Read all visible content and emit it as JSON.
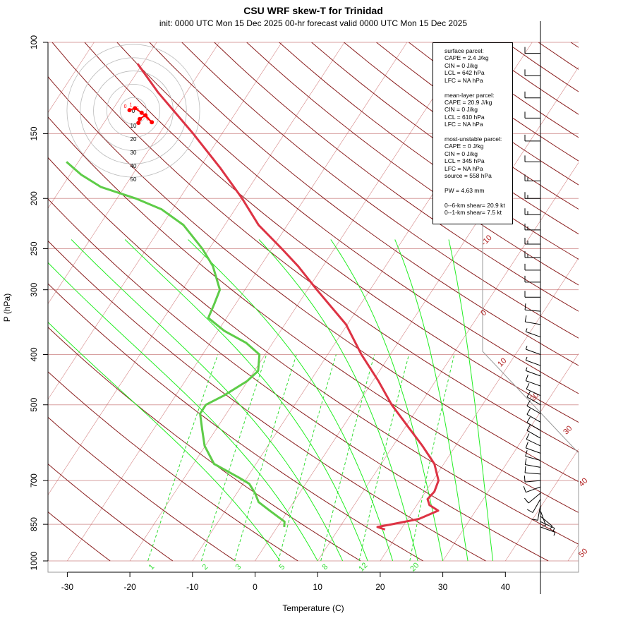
{
  "chart_data": {
    "type": "skew-t",
    "title": "CSU WRF skew-T for Trinidad",
    "subtitle": "init: 0000 UTC Mon 15 Dec 2025    00-hr forecast valid 0000 UTC Mon 15 Dec 2025",
    "xlabel": "Temperature (C)",
    "ylabel": "P (hPa)",
    "x_ticks": [
      -30,
      -20,
      -10,
      0,
      10,
      20,
      30,
      40
    ],
    "p_ticks": [
      100,
      150,
      200,
      250,
      300,
      400,
      500,
      700,
      850,
      1000
    ],
    "isotherm_labels": [
      "-10",
      "0",
      "10",
      "20",
      "30",
      "40",
      "50"
    ],
    "mixing_ratio_labels": [
      "1",
      "2",
      "3",
      "5",
      "8",
      "12",
      "20"
    ],
    "temperature_profile": [
      {
        "p": 870,
        "t": 17.5
      },
      {
        "p": 860,
        "t": 16.0
      },
      {
        "p": 850,
        "t": 18.0
      },
      {
        "p": 830,
        "t": 21.8
      },
      {
        "p": 800,
        "t": 24.0
      },
      {
        "p": 780,
        "t": 22.0
      },
      {
        "p": 760,
        "t": 21.1
      },
      {
        "p": 735,
        "t": 21.4
      },
      {
        "p": 700,
        "t": 20.9
      },
      {
        "p": 650,
        "t": 18.5
      },
      {
        "p": 600,
        "t": 14.7
      },
      {
        "p": 550,
        "t": 10.3
      },
      {
        "p": 500,
        "t": 5.5
      },
      {
        "p": 450,
        "t": 0.9
      },
      {
        "p": 400,
        "t": -4.6
      },
      {
        "p": 350,
        "t": -10.2
      },
      {
        "p": 300,
        "t": -18.5
      },
      {
        "p": 270,
        "t": -24.0
      },
      {
        "p": 250,
        "t": -28.4
      },
      {
        "p": 225,
        "t": -34.6
      },
      {
        "p": 200,
        "t": -40.0
      },
      {
        "p": 175,
        "t": -46.6
      },
      {
        "p": 150,
        "t": -54.6
      },
      {
        "p": 125,
        "t": -64.5
      },
      {
        "p": 110,
        "t": -70.8
      }
    ],
    "dewpoint_profile": [
      {
        "p": 860,
        "t": 1.1
      },
      {
        "p": 840,
        "t": 0.6
      },
      {
        "p": 800,
        "t": -2.9
      },
      {
        "p": 770,
        "t": -5.6
      },
      {
        "p": 740,
        "t": -7.1
      },
      {
        "p": 710,
        "t": -9.0
      },
      {
        "p": 690,
        "t": -11.4
      },
      {
        "p": 650,
        "t": -16.7
      },
      {
        "p": 600,
        "t": -20.1
      },
      {
        "p": 560,
        "t": -22.1
      },
      {
        "p": 520,
        "t": -24.2
      },
      {
        "p": 500,
        "t": -24.2
      },
      {
        "p": 480,
        "t": -22.3
      },
      {
        "p": 450,
        "t": -20.1
      },
      {
        "p": 430,
        "t": -19.4
      },
      {
        "p": 400,
        "t": -20.9
      },
      {
        "p": 380,
        "t": -24.2
      },
      {
        "p": 360,
        "t": -29.0
      },
      {
        "p": 340,
        "t": -32.9
      },
      {
        "p": 320,
        "t": -33.4
      },
      {
        "p": 300,
        "t": -34.0
      },
      {
        "p": 270,
        "t": -37.6
      },
      {
        "p": 250,
        "t": -41.1
      },
      {
        "p": 225,
        "t": -46.6
      },
      {
        "p": 210,
        "t": -51.7
      },
      {
        "p": 200,
        "t": -57.0
      },
      {
        "p": 190,
        "t": -63.8
      },
      {
        "p": 180,
        "t": -68.2
      },
      {
        "p": 170,
        "t": -71.9
      }
    ],
    "wind_barbs": [
      {
        "p": 860,
        "spd": 5,
        "dir": 110
      },
      {
        "p": 840,
        "spd": 5,
        "dir": 115
      },
      {
        "p": 820,
        "spd": 5,
        "dir": 130
      },
      {
        "p": 800,
        "spd": 5,
        "dir": 160
      },
      {
        "p": 780,
        "spd": 10,
        "dir": 190
      },
      {
        "p": 760,
        "spd": 10,
        "dir": 210
      },
      {
        "p": 740,
        "spd": 10,
        "dir": 230
      },
      {
        "p": 720,
        "spd": 10,
        "dir": 250
      },
      {
        "p": 700,
        "spd": 10,
        "dir": 265
      },
      {
        "p": 680,
        "spd": 10,
        "dir": 275
      },
      {
        "p": 660,
        "spd": 10,
        "dir": 280
      },
      {
        "p": 640,
        "spd": 10,
        "dir": 285
      },
      {
        "p": 620,
        "spd": 10,
        "dir": 290
      },
      {
        "p": 600,
        "spd": 10,
        "dir": 295
      },
      {
        "p": 580,
        "spd": 10,
        "dir": 300
      },
      {
        "p": 560,
        "spd": 10,
        "dir": 300
      },
      {
        "p": 540,
        "spd": 10,
        "dir": 300
      },
      {
        "p": 520,
        "spd": 10,
        "dir": 300
      },
      {
        "p": 500,
        "spd": 10,
        "dir": 300
      },
      {
        "p": 480,
        "spd": 10,
        "dir": 295
      },
      {
        "p": 460,
        "spd": 10,
        "dir": 290
      },
      {
        "p": 440,
        "spd": 5,
        "dir": 290
      },
      {
        "p": 420,
        "spd": 5,
        "dir": 290
      },
      {
        "p": 400,
        "spd": 5,
        "dir": 290
      },
      {
        "p": 370,
        "spd": 5,
        "dir": 290
      },
      {
        "p": 350,
        "spd": 10,
        "dir": 280
      },
      {
        "p": 330,
        "spd": 10,
        "dir": 275
      },
      {
        "p": 310,
        "spd": 10,
        "dir": 270
      },
      {
        "p": 290,
        "spd": 10,
        "dir": 270
      },
      {
        "p": 275,
        "spd": 10,
        "dir": 270
      },
      {
        "p": 260,
        "spd": 15,
        "dir": 270
      },
      {
        "p": 245,
        "spd": 15,
        "dir": 270
      },
      {
        "p": 230,
        "spd": 15,
        "dir": 270
      },
      {
        "p": 215,
        "spd": 15,
        "dir": 270
      },
      {
        "p": 200,
        "spd": 15,
        "dir": 270
      },
      {
        "p": 185,
        "spd": 15,
        "dir": 270
      },
      {
        "p": 170,
        "spd": 10,
        "dir": 270
      },
      {
        "p": 155,
        "spd": 10,
        "dir": 270
      },
      {
        "p": 140,
        "spd": 10,
        "dir": 270
      },
      {
        "p": 128,
        "spd": 10,
        "dir": 270
      },
      {
        "p": 116,
        "spd": 10,
        "dir": 270
      },
      {
        "p": 105,
        "spd": 10,
        "dir": 270
      }
    ],
    "hodograph": {
      "ring_labels": [
        "0",
        "10",
        "20",
        "30",
        "40",
        "50"
      ],
      "points": [
        {
          "label": "0",
          "u": -1.2,
          "v": 0.2
        },
        {
          "label": "1",
          "u": 0.5,
          "v": 0.8
        },
        {
          "label": "5",
          "u": 2.6,
          "v": -0.6
        },
        {
          "label": "6",
          "u": 5.8,
          "v": -3.6
        },
        {
          "label": "",
          "u": 3.8,
          "v": -1.4
        },
        {
          "label": "",
          "u": 2.0,
          "v": -2.6
        },
        {
          "label": "",
          "u": 1.6,
          "v": -3.8
        }
      ]
    },
    "legend_blocks": [
      [
        "surface parcel:",
        "CAPE = 2.4 J/kg",
        "CIN = 0 J/kg",
        "LCL = 642 hPa",
        "LFC = NA hPa"
      ],
      [
        "mean-layer parcel:",
        "CAPE = 20.9 J/kg",
        "CIN = 0 J/kg",
        "LCL = 610 hPa",
        "LFC = NA hPa"
      ],
      [
        "most-unstable parcel:",
        "CAPE = 0 J/kg",
        "CIN = 0 J/kg",
        "LCL = 345 hPa",
        "LFC = NA hPa",
        "source = 558 hPa"
      ],
      [
        "PW =  4.63 mm"
      ],
      [
        "0--6-km shear= 20.9 kt",
        "0--1-km shear= 7.5 kt"
      ]
    ],
    "colors": {
      "temperature": "#dd3344",
      "dewpoint": "#5ecc48",
      "isotherm": "#b22222",
      "dry_adiabat": "#8b2020",
      "moist_adiabat": "#22ee22",
      "mixing_ratio": "#33dd33",
      "isobar": "#d8a0a0",
      "hodograph": "#ff0000"
    }
  }
}
